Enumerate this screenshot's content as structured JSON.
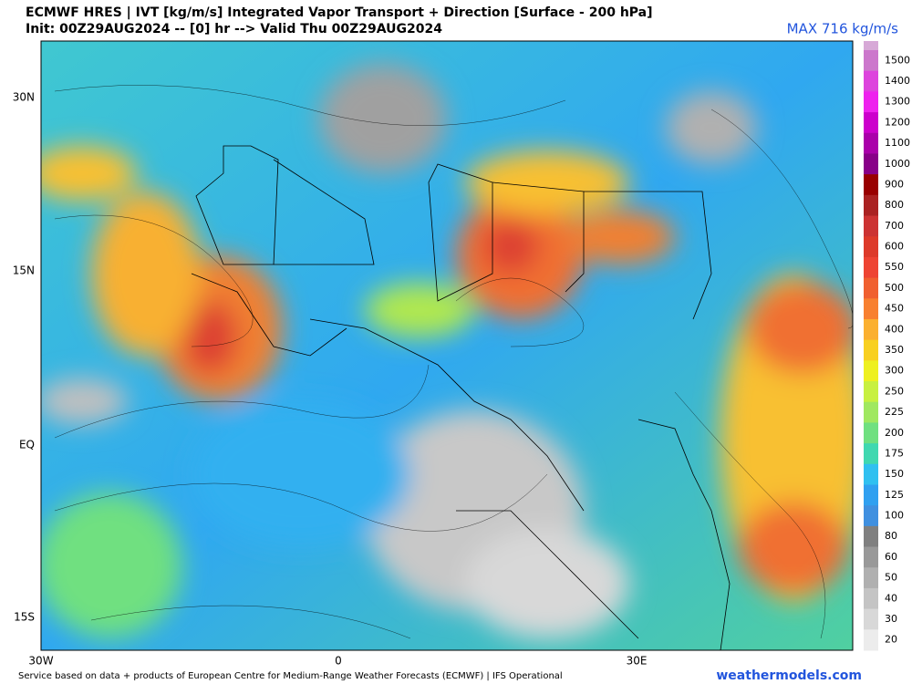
{
  "header": {
    "title": "ECMWF HRES | IVT [kg/m/s] Integrated Vapor Transport + Direction [Surface - 200 hPa]",
    "subtitle": "Init: 00Z29AUG2024 -- [0] hr --> Valid Thu 00Z29AUG2024",
    "max_label": "MAX 716 kg/m/s"
  },
  "map": {
    "lat_labels": [
      "30N",
      "15N",
      "EQ",
      "15S"
    ],
    "lon_labels": [
      "30W",
      "0",
      "30E"
    ]
  },
  "colorbar": {
    "labels": [
      "1500",
      "1400",
      "1300",
      "1200",
      "1100",
      "1000",
      "900",
      "800",
      "700",
      "600",
      "550",
      "500",
      "450",
      "400",
      "350",
      "300",
      "250",
      "225",
      "200",
      "175",
      "150",
      "125",
      "100",
      "80",
      "60",
      "50",
      "40",
      "30",
      "20"
    ],
    "colors": [
      "#cc77cc",
      "#dd44dd",
      "#ee22ee",
      "#cc00cc",
      "#aa00aa",
      "#880088",
      "#990000",
      "#aa2222",
      "#cc3333",
      "#dd3a2a",
      "#ee4433",
      "#f06030",
      "#f88030",
      "#fbb030",
      "#f8d020",
      "#eef020",
      "#c8f040",
      "#a0e860",
      "#70e080",
      "#40d8b0",
      "#30c0f0",
      "#30a0f0",
      "#4090e0",
      "#808080",
      "#999999",
      "#b0b0b0",
      "#c4c4c4",
      "#d8d8d8",
      "#ececec"
    ]
  },
  "footer": {
    "credit": "Service based on data + products of European Centre for Medium-Range Weather Forecasts (ECMWF) | IFS Operational",
    "site": "weathermodels.com"
  }
}
